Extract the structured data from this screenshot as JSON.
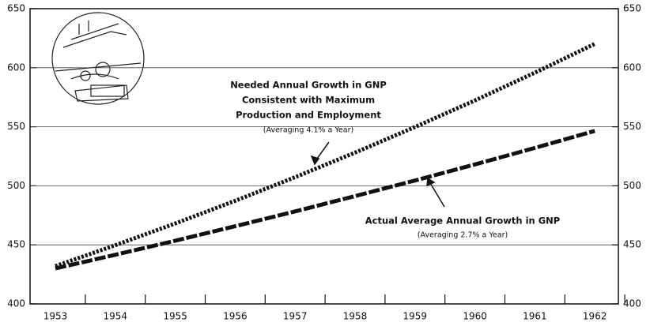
{
  "chart_data": {
    "type": "line",
    "categories": [
      "1953",
      "1954",
      "1955",
      "1956",
      "1957",
      "1958",
      "1959",
      "1960",
      "1961",
      "1962"
    ],
    "series": [
      {
        "color": "#111111",
        "style": "dotted",
        "values": [
          432,
          449.7,
          468.1,
          487.3,
          507.3,
          528.1,
          549.8,
          572.3,
          595.8,
          620.2
        ]
      },
      {
        "color": "#111111",
        "style": "dashed",
        "values": [
          430,
          441.6,
          453.5,
          465.8,
          478.3,
          491.3,
          504.5,
          518.1,
          532.1,
          546.5
        ]
      }
    ],
    "ylim": [
      400,
      650
    ],
    "yticks": [
      400,
      450,
      500,
      550,
      600,
      650
    ],
    "y2lim": [
      400,
      650
    ],
    "y2ticks": [
      400,
      450,
      500,
      550,
      600,
      650
    ],
    "grid": true,
    "annotations": [
      [
        "Needed Annual Growth in GNP",
        "Consistent with Maximum",
        "Production and Employment",
        "(Averaging 4.1% a Year)"
      ],
      [
        "Actual Average Annual Growth in GNP",
        "(Averaging 2.7% a Year)"
      ]
    ]
  }
}
